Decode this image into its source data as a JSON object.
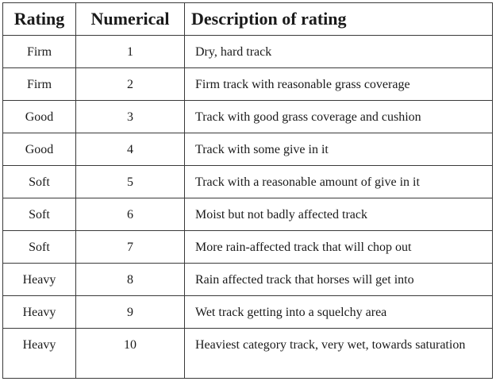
{
  "table": {
    "header": [
      "Rating",
      "Numerical",
      "Description of rating"
    ],
    "rows": [
      [
        "Firm",
        1,
        "Dry, hard track"
      ],
      [
        "Firm",
        2,
        "Firm track with reasonable grass coverage"
      ],
      [
        "Good",
        3,
        "Track with good grass coverage and cushion"
      ],
      [
        "Good",
        4,
        "Track with some give in it"
      ],
      [
        "Soft",
        5,
        "Track with a reasonable amount of give in it"
      ],
      [
        "Soft",
        6,
        "Moist but not badly affected track"
      ],
      [
        "Soft",
        7,
        "More rain-affected track that will chop out"
      ],
      [
        "Heavy",
        8,
        "Rain affected track that horses will get into"
      ],
      [
        "Heavy",
        9,
        "Wet track getting into a squelchy area"
      ],
      [
        "Heavy",
        10,
        "Heaviest category track, very wet, towards saturation"
      ]
    ]
  }
}
